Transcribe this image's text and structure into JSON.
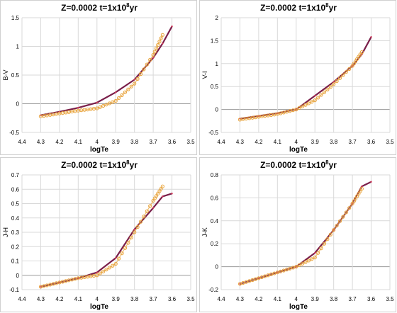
{
  "chart_data": [
    {
      "type": "line",
      "title": "Z=0.0002   t=1x10",
      "title_sup": "8",
      "title_end": "yr",
      "xlabel": "logTe",
      "ylabel": "B-V",
      "xlim": [
        4.4,
        3.5
      ],
      "ylim": [
        -0.5,
        1.5
      ],
      "x_ticks": [
        "4.4",
        "4.3",
        "4.2",
        "4.1",
        "4",
        "3.9",
        "3.8",
        "3.7",
        "3.6",
        "3.5"
      ],
      "y_ticks": [
        "-0.5",
        "0",
        "0.5",
        "1",
        "1.5"
      ],
      "y_tick_values": [
        -0.5,
        0,
        0.5,
        1,
        1.5
      ],
      "series": [
        {
          "color": "#7a1f4a",
          "marker": "line",
          "points": [
            [
              4.3,
              -0.2
            ],
            [
              4.2,
              -0.14
            ],
            [
              4.1,
              -0.07
            ],
            [
              4.0,
              0.02
            ],
            [
              3.9,
              0.2
            ],
            [
              3.8,
              0.42
            ],
            [
              3.7,
              0.8
            ],
            [
              3.65,
              1.05
            ],
            [
              3.6,
              1.35
            ]
          ]
        },
        {
          "color": "#e8a33a",
          "marker": "circle",
          "points": [
            [
              4.3,
              -0.22
            ],
            [
              4.2,
              -0.17
            ],
            [
              4.1,
              -0.12
            ],
            [
              4.0,
              -0.08
            ],
            [
              3.9,
              0.05
            ],
            [
              3.8,
              0.35
            ],
            [
              3.7,
              0.85
            ],
            [
              3.65,
              1.2
            ]
          ]
        }
      ]
    },
    {
      "type": "line",
      "title": "Z=0.0002   t=1x10",
      "title_sup": "8",
      "title_end": "yr",
      "xlabel": "logTe",
      "ylabel": "V-I",
      "xlim": [
        4.4,
        3.5
      ],
      "ylim": [
        -0.5,
        2
      ],
      "x_ticks": [
        "4.4",
        "4.3",
        "4.2",
        "4.1",
        "4",
        "3.9",
        "3.8",
        "3.7",
        "3.6",
        "3.5"
      ],
      "y_ticks": [
        "-0.5",
        "0",
        "0.5",
        "1",
        "1.5",
        "2"
      ],
      "y_tick_values": [
        -0.5,
        0,
        0.5,
        1,
        1.5,
        2
      ],
      "series": [
        {
          "color": "#7a1f4a",
          "marker": "line",
          "points": [
            [
              4.3,
              -0.2
            ],
            [
              4.2,
              -0.14
            ],
            [
              4.1,
              -0.08
            ],
            [
              4.0,
              0.0
            ],
            [
              3.9,
              0.3
            ],
            [
              3.8,
              0.6
            ],
            [
              3.7,
              0.95
            ],
            [
              3.65,
              1.2
            ],
            [
              3.6,
              1.58
            ]
          ]
        },
        {
          "color": "#e8a33a",
          "marker": "circle",
          "points": [
            [
              4.3,
              -0.22
            ],
            [
              4.2,
              -0.16
            ],
            [
              4.1,
              -0.1
            ],
            [
              4.0,
              0.0
            ],
            [
              3.9,
              0.2
            ],
            [
              3.8,
              0.55
            ],
            [
              3.7,
              0.95
            ],
            [
              3.65,
              1.25
            ]
          ]
        }
      ]
    },
    {
      "type": "line",
      "title": "Z=0.0002   t=1x10",
      "title_sup": "8",
      "title_end": "yr",
      "xlabel": "logTe",
      "ylabel": "J-H",
      "xlim": [
        4.4,
        3.5
      ],
      "ylim": [
        -0.1,
        0.7
      ],
      "x_ticks": [
        "4.4",
        "4.3",
        "4.2",
        "4.1",
        "4",
        "3.9",
        "3.8",
        "3.7",
        "3.6",
        "3.5"
      ],
      "y_ticks": [
        "-0.1",
        "0",
        "0.1",
        "0.2",
        "0.3",
        "0.4",
        "0.5",
        "0.6",
        "0.7"
      ],
      "y_tick_values": [
        -0.1,
        0,
        0.1,
        0.2,
        0.3,
        0.4,
        0.5,
        0.6,
        0.7
      ],
      "series": [
        {
          "color": "#7a1f4a",
          "marker": "line",
          "points": [
            [
              4.3,
              -0.08
            ],
            [
              4.2,
              -0.05
            ],
            [
              4.1,
              -0.02
            ],
            [
              4.0,
              0.02
            ],
            [
              3.9,
              0.12
            ],
            [
              3.8,
              0.32
            ],
            [
              3.7,
              0.47
            ],
            [
              3.65,
              0.55
            ],
            [
              3.6,
              0.57
            ]
          ]
        },
        {
          "color": "#e8a33a",
          "marker": "circle",
          "points": [
            [
              4.3,
              -0.08
            ],
            [
              4.2,
              -0.05
            ],
            [
              4.1,
              -0.02
            ],
            [
              4.0,
              0.0
            ],
            [
              3.9,
              0.08
            ],
            [
              3.8,
              0.3
            ],
            [
              3.7,
              0.52
            ],
            [
              3.65,
              0.62
            ]
          ]
        }
      ]
    },
    {
      "type": "line",
      "title": "Z=0.0002   t=1x10",
      "title_sup": "8",
      "title_end": "yr",
      "xlabel": "logTe",
      "ylabel": "J-K",
      "xlim": [
        4.4,
        3.5
      ],
      "ylim": [
        -0.2,
        0.8
      ],
      "x_ticks": [
        "4.4",
        "4.3",
        "4.2",
        "4.1",
        "4",
        "3.9",
        "3.8",
        "3.7",
        "3.6",
        "3.5"
      ],
      "y_ticks": [
        "-0.2",
        "0",
        "0.2",
        "0.4",
        "0.6",
        "0.8"
      ],
      "y_tick_values": [
        -0.2,
        0,
        0.2,
        0.4,
        0.6,
        0.8
      ],
      "series": [
        {
          "color": "#7a1f4a",
          "marker": "line",
          "points": [
            [
              4.3,
              -0.15
            ],
            [
              4.2,
              -0.1
            ],
            [
              4.1,
              -0.05
            ],
            [
              4.0,
              0.0
            ],
            [
              3.9,
              0.12
            ],
            [
              3.8,
              0.32
            ],
            [
              3.7,
              0.55
            ],
            [
              3.65,
              0.7
            ],
            [
              3.6,
              0.74
            ]
          ]
        },
        {
          "color": "#e8a33a",
          "marker": "circle",
          "points": [
            [
              4.3,
              -0.15
            ],
            [
              4.2,
              -0.1
            ],
            [
              4.1,
              -0.05
            ],
            [
              4.0,
              0.0
            ],
            [
              3.9,
              0.08
            ],
            [
              3.8,
              0.32
            ],
            [
              3.7,
              0.55
            ],
            [
              3.65,
              0.68
            ]
          ]
        }
      ]
    }
  ]
}
